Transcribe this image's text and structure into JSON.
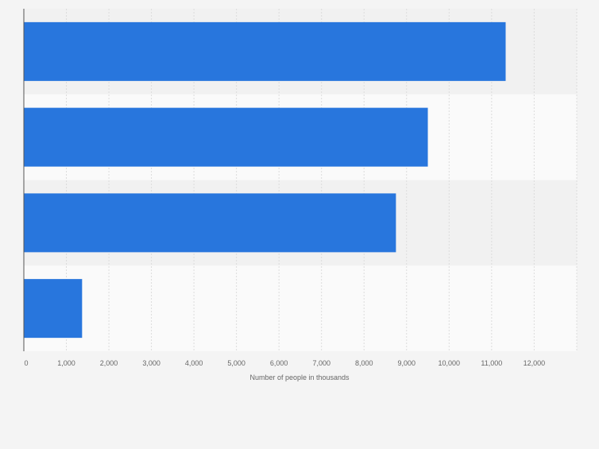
{
  "chart_data": {
    "type": "bar",
    "orientation": "horizontal",
    "categories": [
      "",
      "",
      "",
      ""
    ],
    "values": [
      11330,
      9500,
      8750,
      1370
    ],
    "xlabel": "Number of people in thousands",
    "ylabel": "",
    "xlim": [
      0,
      13000
    ],
    "xticks": [
      0,
      1000,
      2000,
      3000,
      4000,
      5000,
      6000,
      7000,
      8000,
      9000,
      10000,
      11000,
      12000
    ],
    "xtick_labels": [
      "0",
      "1,000",
      "2,000",
      "3,000",
      "4,000",
      "5,000",
      "6,000",
      "7,000",
      "8,000",
      "9,000",
      "10,000",
      "11,000",
      "12,000"
    ],
    "grid": true,
    "legend": "none",
    "colors": {
      "bar": "#2876dd",
      "band_dark": "#f1f1f1",
      "band_light": "#fafafa",
      "grid": "#dcdcdc",
      "axis": "#555555",
      "tick_text": "#666666",
      "background": "#f4f4f4"
    }
  }
}
